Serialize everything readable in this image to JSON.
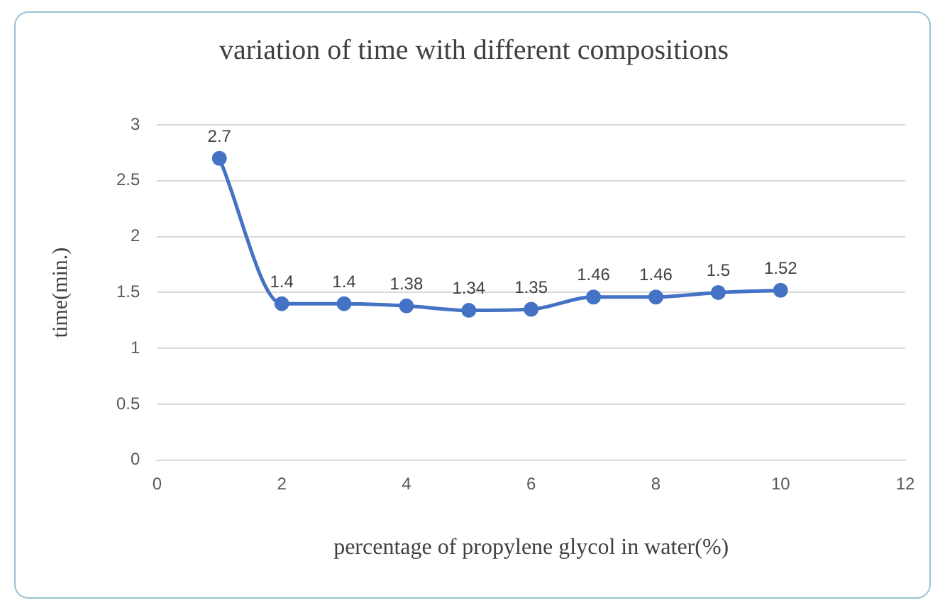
{
  "chart_data": {
    "type": "line",
    "title": "variation of time with different compositions",
    "xlabel": "percentage of propylene glycol in water(%)",
    "ylabel": "time(min.)",
    "x": [
      1,
      2,
      3,
      4,
      5,
      6,
      7,
      8,
      9,
      10
    ],
    "series": [
      {
        "color": "#4472c4",
        "values": [
          2.7,
          1.4,
          1.4,
          1.38,
          1.34,
          1.35,
          1.46,
          1.46,
          1.5,
          1.52
        ]
      }
    ],
    "xlim": [
      0,
      12
    ],
    "xticks": [
      0,
      2,
      4,
      6,
      8,
      10,
      12
    ],
    "ylim": [
      0,
      3
    ],
    "yticks": [
      0,
      0.5,
      1,
      1.5,
      2,
      2.5,
      3
    ],
    "grid": "y",
    "legend": false,
    "marker": "circle",
    "line_style": "solid",
    "data_labels": true
  }
}
